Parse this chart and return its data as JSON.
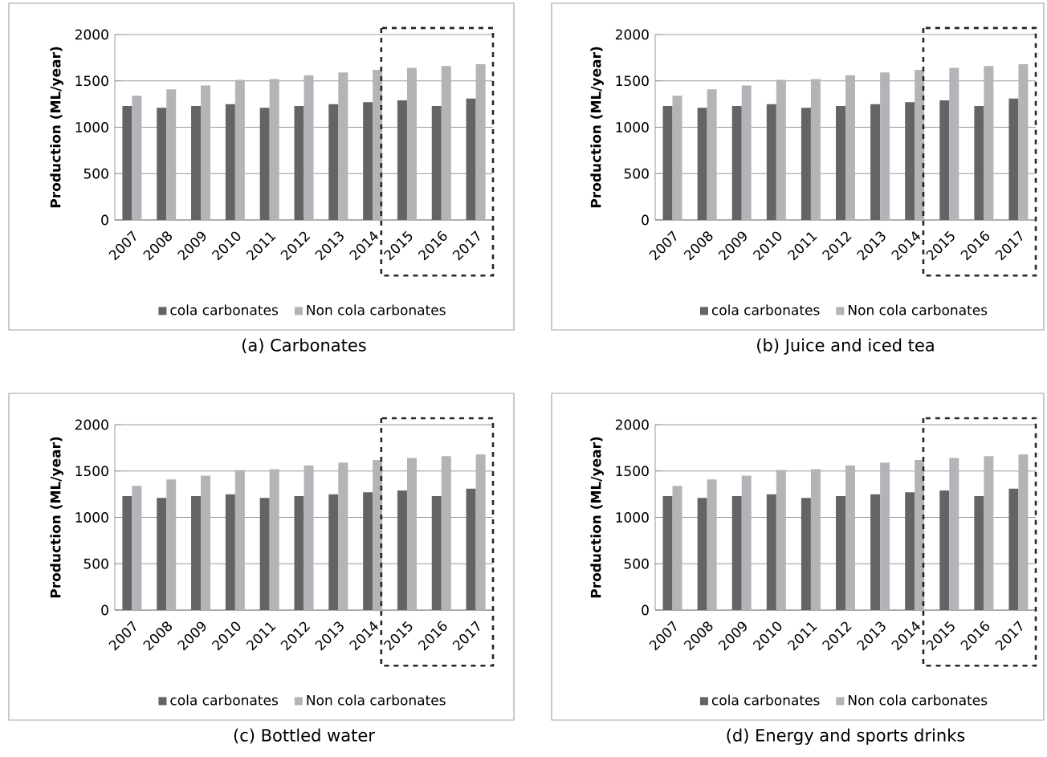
{
  "chart_data": [
    {
      "type": "bar",
      "title": "(a)  Carbonates",
      "ylabel": "Production (ML/year)",
      "categories": [
        "2007",
        "2008",
        "2009",
        "2010",
        "2011",
        "2012",
        "2013",
        "2014",
        "2015",
        "2016",
        "2017"
      ],
      "series": [
        {
          "name": "cola carbonates",
          "color": "#646464",
          "values": [
            1230,
            1210,
            1230,
            1250,
            1210,
            1230,
            1250,
            1270,
            1290,
            1230,
            1310
          ]
        },
        {
          "name": "Non cola carbonates",
          "color": "#b3b4b8",
          "values": [
            1340,
            1410,
            1450,
            1510,
            1520,
            1560,
            1590,
            1620,
            1640,
            1660,
            1680
          ]
        }
      ],
      "ylim": [
        0,
        2000
      ],
      "yticks": [
        0,
        500,
        1000,
        1500,
        2000
      ],
      "grid": "y",
      "legend": "bottom"
    },
    {
      "type": "bar",
      "title": "(b)  Juice and iced tea",
      "ylabel": "Production (ML/year)",
      "categories": [
        "2007",
        "2008",
        "2009",
        "2010",
        "2011",
        "2012",
        "2013",
        "2014",
        "2015",
        "2016",
        "2017"
      ],
      "series": [
        {
          "name": "cola carbonates",
          "color": "#646464",
          "values": [
            1230,
            1210,
            1230,
            1250,
            1210,
            1230,
            1250,
            1270,
            1290,
            1230,
            1310
          ]
        },
        {
          "name": "Non cola carbonates",
          "color": "#b3b4b8",
          "values": [
            1340,
            1410,
            1450,
            1510,
            1520,
            1560,
            1590,
            1620,
            1640,
            1660,
            1680
          ]
        }
      ],
      "ylim": [
        0,
        2000
      ],
      "yticks": [
        0,
        500,
        1000,
        1500,
        2000
      ],
      "grid": "y",
      "legend": "bottom"
    },
    {
      "type": "bar",
      "title": "(c)  Bottled water",
      "ylabel": "Production (ML/year)",
      "categories": [
        "2007",
        "2008",
        "2009",
        "2010",
        "2011",
        "2012",
        "2013",
        "2014",
        "2015",
        "2016",
        "2017"
      ],
      "series": [
        {
          "name": "cola carbonates",
          "color": "#646464",
          "values": [
            1230,
            1210,
            1230,
            1250,
            1210,
            1230,
            1250,
            1270,
            1290,
            1230,
            1310
          ]
        },
        {
          "name": "Non cola carbonates",
          "color": "#b3b4b8",
          "values": [
            1340,
            1410,
            1450,
            1510,
            1520,
            1560,
            1590,
            1620,
            1640,
            1660,
            1680
          ]
        }
      ],
      "ylim": [
        0,
        2000
      ],
      "yticks": [
        0,
        500,
        1000,
        1500,
        2000
      ],
      "grid": "y",
      "legend": "bottom"
    },
    {
      "type": "bar",
      "title": "(d)  Energy and sports drinks",
      "ylabel": "Production (ML/year)",
      "categories": [
        "2007",
        "2008",
        "2009",
        "2010",
        "2011",
        "2012",
        "2013",
        "2014",
        "2015",
        "2016",
        "2017"
      ],
      "series": [
        {
          "name": "cola carbonates",
          "color": "#646464",
          "values": [
            1230,
            1210,
            1230,
            1250,
            1210,
            1230,
            1250,
            1270,
            1290,
            1230,
            1310
          ]
        },
        {
          "name": "Non cola carbonates",
          "color": "#b3b4b8",
          "values": [
            1340,
            1410,
            1450,
            1510,
            1520,
            1560,
            1590,
            1620,
            1640,
            1660,
            1680
          ]
        }
      ],
      "ylim": [
        0,
        2000
      ],
      "yticks": [
        0,
        500,
        1000,
        1500,
        2000
      ],
      "grid": "y",
      "legend": "bottom"
    }
  ]
}
